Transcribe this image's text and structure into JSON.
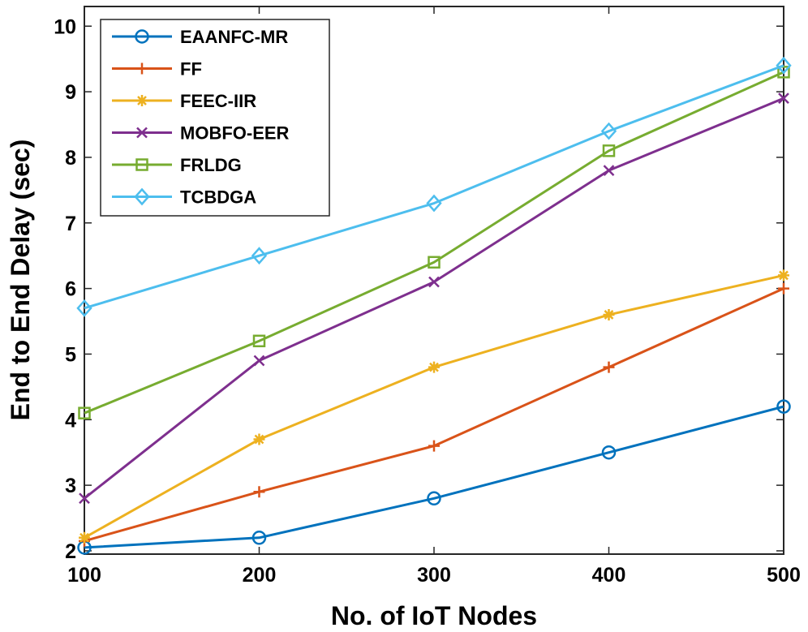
{
  "chart_data": {
    "type": "line",
    "title": "",
    "xlabel": "No. of IoT Nodes",
    "ylabel": "End to End Delay (sec)",
    "x": [
      100,
      200,
      300,
      400,
      500
    ],
    "xlim": [
      100,
      500
    ],
    "ylim": [
      1.95,
      10.3
    ],
    "xticks": [
      "100",
      "200",
      "300",
      "400",
      "500"
    ],
    "yticks": [
      "2",
      "3",
      "4",
      "5",
      "6",
      "7",
      "8",
      "9",
      "10"
    ],
    "grid": false,
    "legend_position": "top-left",
    "series": [
      {
        "name": "EAANFC-MR",
        "color": "#0072BD",
        "marker": "circle",
        "values": [
          2.05,
          2.2,
          2.8,
          3.5,
          4.2
        ]
      },
      {
        "name": "FF",
        "color": "#D95319",
        "marker": "plus",
        "values": [
          2.15,
          2.9,
          3.6,
          4.8,
          6.0
        ]
      },
      {
        "name": "FEEC-IIR",
        "color": "#EDB120",
        "marker": "star",
        "values": [
          2.2,
          3.7,
          4.8,
          5.6,
          6.2
        ]
      },
      {
        "name": "MOBFO-EER",
        "color": "#7E2F8E",
        "marker": "x",
        "values": [
          2.8,
          4.9,
          6.1,
          7.8,
          8.9
        ]
      },
      {
        "name": "FRLDG",
        "color": "#77AC30",
        "marker": "square",
        "values": [
          4.1,
          5.2,
          6.4,
          8.1,
          9.3
        ]
      },
      {
        "name": "TCBDGA",
        "color": "#4DBEEE",
        "marker": "diamond",
        "values": [
          5.7,
          6.5,
          7.3,
          8.4,
          9.4
        ]
      }
    ]
  }
}
